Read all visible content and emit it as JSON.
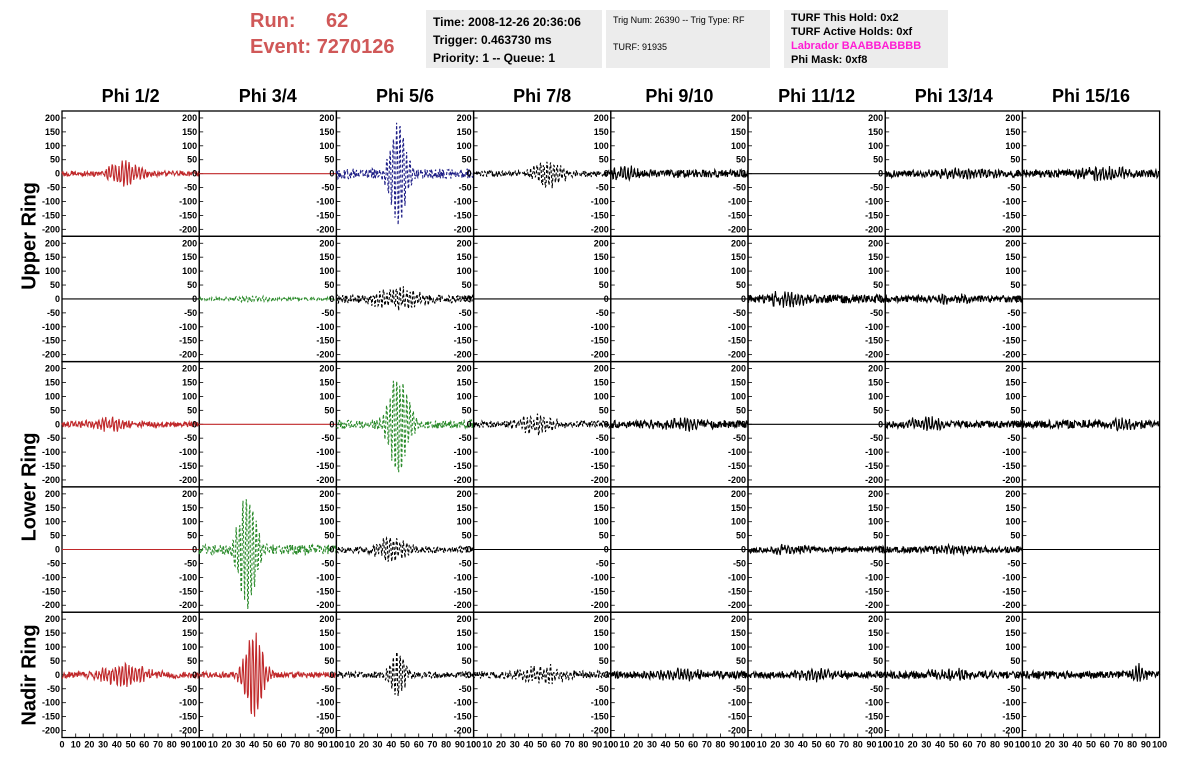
{
  "header": {
    "run_label": "Run:",
    "run_value": "62",
    "event_label": "Event:",
    "event_value": "7270126"
  },
  "info": {
    "time": "Time: 2008-12-26 20:36:06",
    "trigger": "Trigger: 0.463730 ms",
    "priority": "Priority: 1 -- Queue: 1",
    "trig_num": "Trig Num: 26390 -- Trig Type: RF",
    "turf": "TURF: 91935",
    "turf_hold": "TURF This Hold: 0x2",
    "turf_active": "TURF Active Holds: 0xf",
    "labrador": "Labrador BAABBABBBB",
    "phi_mask": "Phi Mask: 0xf8"
  },
  "colors": {
    "red": "#c0282a",
    "blue": "#1e1e86",
    "green": "#2a8a2a",
    "black": "#000000",
    "magenta": "#ff1cd4",
    "header_red": "#d05858",
    "box_bg": "#ececec"
  },
  "columns": [
    "Phi 1/2",
    "Phi 3/4",
    "Phi 5/6",
    "Phi 7/8",
    "Phi 9/10",
    "Phi 11/12",
    "Phi 13/14",
    "Phi 15/16"
  ],
  "rings": [
    "Upper Ring",
    "Lower Ring",
    "Nadir Ring"
  ],
  "chart_data": {
    "type": "line",
    "grid": false,
    "xlim": [
      0,
      100
    ],
    "ylim": [
      -225,
      225
    ],
    "x_ticks": [
      0,
      10,
      20,
      30,
      40,
      50,
      60,
      70,
      80,
      90,
      100
    ],
    "x_tick_labels": [
      "0",
      "10",
      "20",
      "30",
      "40",
      "50",
      "60",
      "70",
      "80",
      "90",
      "100"
    ],
    "y_ticks": [
      -200,
      -150,
      -100,
      -50,
      0,
      50,
      100,
      150,
      200
    ],
    "rows": [
      {
        "ring": "Upper Ring",
        "cells": [
          {
            "color": "red",
            "style": "solid",
            "noise": 10,
            "peak": 40,
            "center": 45,
            "width": 12
          },
          {
            "color": "red",
            "style": "solid",
            "flat": true
          },
          {
            "color": "blue",
            "style": "dashed",
            "noise": 18,
            "peak": 180,
            "center": 45,
            "width": 7
          },
          {
            "color": "black",
            "style": "dashed",
            "noise": 12,
            "peak": 45,
            "center": 55,
            "width": 12
          },
          {
            "color": "black",
            "style": "solid",
            "noise": 14,
            "peak": 20,
            "center": 10,
            "width": 10
          },
          {
            "color": "black",
            "style": "solid",
            "flat": true
          },
          {
            "color": "black",
            "style": "solid",
            "noise": 13,
            "peak": 15,
            "center": 60,
            "width": 20
          },
          {
            "color": "black",
            "style": "solid",
            "noise": 14,
            "peak": 15,
            "center": 60,
            "width": 20
          }
        ]
      },
      {
        "ring": "Upper Ring",
        "cells": [
          {
            "color": "black",
            "style": "solid",
            "flat": true
          },
          {
            "color": "green",
            "style": "dashed",
            "noise": 5,
            "peak": 8,
            "center": 35,
            "width": 15
          },
          {
            "color": "black",
            "style": "dashed",
            "noise": 15,
            "peak": 35,
            "center": 45,
            "width": 18
          },
          {
            "color": "black",
            "style": "solid",
            "flat": true
          },
          {
            "color": "black",
            "style": "solid",
            "flat": true
          },
          {
            "color": "black",
            "style": "solid",
            "noise": 16,
            "peak": 20,
            "center": 30,
            "width": 15
          },
          {
            "color": "black",
            "style": "solid",
            "noise": 12,
            "peak": 10,
            "center": 50,
            "width": 20
          },
          {
            "color": "black",
            "style": "solid",
            "flat": true
          }
        ]
      },
      {
        "ring": "Lower Ring",
        "cells": [
          {
            "color": "red",
            "style": "solid",
            "noise": 10,
            "peak": 20,
            "center": 35,
            "width": 15
          },
          {
            "color": "red",
            "style": "solid",
            "flat": true
          },
          {
            "color": "green",
            "style": "dashed",
            "noise": 15,
            "peak": 170,
            "center": 45,
            "width": 9
          },
          {
            "color": "black",
            "style": "dashed",
            "noise": 12,
            "peak": 30,
            "center": 45,
            "width": 15
          },
          {
            "color": "black",
            "style": "solid",
            "noise": 14,
            "peak": 15,
            "center": 50,
            "width": 20
          },
          {
            "color": "black",
            "style": "solid",
            "flat": true
          },
          {
            "color": "black",
            "style": "solid",
            "noise": 13,
            "peak": 20,
            "center": 30,
            "width": 15
          },
          {
            "color": "black",
            "style": "solid",
            "noise": 14,
            "peak": 15,
            "center": 70,
            "width": 15
          }
        ]
      },
      {
        "ring": "Lower Ring",
        "cells": [
          {
            "color": "red",
            "style": "solid",
            "flat": true
          },
          {
            "color": "green",
            "style": "dashed",
            "noise": 18,
            "peak": 200,
            "center": 35,
            "width": 8
          },
          {
            "color": "black",
            "style": "dashed",
            "noise": 12,
            "peak": 40,
            "center": 40,
            "width": 12
          },
          {
            "color": "black",
            "style": "solid",
            "flat": true
          },
          {
            "color": "black",
            "style": "solid",
            "flat": true
          },
          {
            "color": "black",
            "style": "solid",
            "noise": 12,
            "peak": 10,
            "center": 30,
            "width": 15
          },
          {
            "color": "black",
            "style": "solid",
            "noise": 11,
            "peak": 10,
            "center": 50,
            "width": 20
          },
          {
            "color": "black",
            "style": "solid",
            "flat": true
          }
        ]
      },
      {
        "ring": "Nadir Ring",
        "cells": [
          {
            "color": "red",
            "style": "solid",
            "noise": 12,
            "peak": 35,
            "center": 45,
            "width": 18
          },
          {
            "color": "red",
            "style": "solid",
            "noise": 10,
            "peak": 150,
            "center": 40,
            "width": 8
          },
          {
            "color": "black",
            "style": "dashed",
            "noise": 12,
            "peak": 90,
            "center": 45,
            "width": 6
          },
          {
            "color": "black",
            "style": "dashed",
            "noise": 14,
            "peak": 30,
            "center": 50,
            "width": 15
          },
          {
            "color": "black",
            "style": "solid",
            "noise": 13,
            "peak": 15,
            "center": 50,
            "width": 20
          },
          {
            "color": "black",
            "style": "solid",
            "noise": 12,
            "peak": 15,
            "center": 50,
            "width": 20
          },
          {
            "color": "black",
            "style": "solid",
            "noise": 13,
            "peak": 15,
            "center": 50,
            "width": 20
          },
          {
            "color": "black",
            "style": "solid",
            "noise": 14,
            "peak": 30,
            "center": 85,
            "width": 5
          }
        ]
      }
    ]
  }
}
